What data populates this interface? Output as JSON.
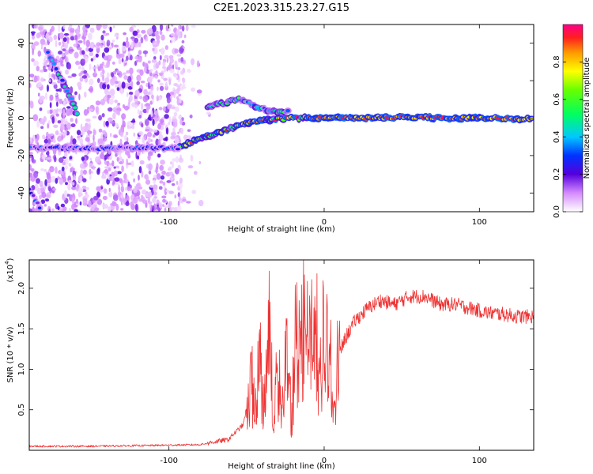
{
  "figure_title": "C2E1.2023.315.23.27.G15",
  "chart_data": [
    {
      "type": "heatmap",
      "title": "C2E1.2023.315.23.27.G15",
      "xlabel": "Height of straight line (km)",
      "ylabel": "Frequency (Hz)",
      "xlim": [
        -190,
        135
      ],
      "ylim": [
        -50,
        50
      ],
      "xticks": [
        -100,
        0,
        100
      ],
      "xtick_labels": [
        "-100",
        "0",
        "100"
      ],
      "yticks": [
        -40,
        -20,
        0,
        20,
        40
      ],
      "ytick_labels": [
        "-40",
        "-20",
        "0",
        "20",
        "40"
      ],
      "colorbar": {
        "label": "Normalized spectral amplitude",
        "range": [
          0,
          1
        ],
        "ticks": [
          0.0,
          0.2,
          0.4,
          0.6,
          0.8
        ],
        "tick_labels": [
          "0.0",
          "0.2",
          "0.4",
          "0.6",
          "0.8"
        ],
        "colormap": "rainbow"
      },
      "features": [
        {
          "name": "direct signal trace",
          "points": [
            [
              -93,
              -15
            ],
            [
              -80,
              -11
            ],
            [
              -65,
              -7
            ],
            [
              -55,
              -4
            ],
            [
              -45,
              -2
            ],
            [
              -35,
              -1
            ],
            [
              -20,
              0
            ],
            [
              0,
              0
            ],
            [
              50,
              0.5
            ],
            [
              100,
              0
            ],
            [
              135,
              -0.5
            ]
          ],
          "amplitude": 0.85
        },
        {
          "name": "upper branch",
          "points": [
            [
              -75,
              6
            ],
            [
              -65,
              8
            ],
            [
              -55,
              10
            ],
            [
              -48,
              8
            ],
            [
              -40,
              5
            ],
            [
              -30,
              3
            ],
            [
              -22,
              4
            ]
          ],
          "amplitude": 0.55
        },
        {
          "name": "low-frequency horizontal band",
          "points": [
            [
              -190,
              -16
            ],
            [
              -160,
              -16
            ],
            [
              -130,
              -16
            ],
            [
              -93,
              -16
            ]
          ],
          "amplitude": 0.3
        },
        {
          "name": "diagonal trace",
          "points": [
            [
              -178,
              35
            ],
            [
              -170,
              22
            ],
            [
              -163,
              10
            ],
            [
              -158,
              0
            ]
          ],
          "amplitude": 0.45
        },
        {
          "name": "corner trace",
          "points": [
            [
              -190,
              -38
            ],
            [
              -182,
              -50
            ]
          ],
          "amplitude": 0.3
        }
      ]
    },
    {
      "type": "line",
      "xlabel": "Height of straight line (km)",
      "ylabel": "SNR (10 * v/v)",
      "y_scale_label": "(x10",
      "y_scale_exponent": "4",
      "xlim": [
        -190,
        135
      ],
      "ylim": [
        0,
        2.35
      ],
      "xticks": [
        -100,
        0,
        100
      ],
      "xtick_labels": [
        "-100",
        "0",
        "100"
      ],
      "yticks": [
        0.5,
        1.0,
        1.5,
        2.0
      ],
      "ytick_labels": [
        "0.5",
        "1.0",
        "1.5",
        "2.0"
      ],
      "line_color": "#ee3333",
      "series": [
        {
          "name": "SNR",
          "x": [
            -190,
            -150,
            -110,
            -80,
            -72,
            -62,
            -52,
            -47,
            -44,
            -41,
            -38,
            -35,
            -33,
            -30,
            -27,
            -24,
            -21,
            -18,
            -15,
            -13,
            -10,
            -7,
            -4,
            -1,
            2,
            6,
            10,
            14,
            20,
            28,
            36,
            45,
            55,
            65,
            75,
            85,
            95,
            105,
            115,
            125,
            135
          ],
          "y": [
            0.05,
            0.05,
            0.06,
            0.07,
            0.1,
            0.13,
            0.32,
            0.85,
            0.7,
            1.2,
            0.55,
            2.0,
            0.35,
            1.0,
            0.55,
            1.55,
            0.35,
            1.75,
            1.3,
            2.35,
            1.5,
            1.6,
            1.4,
            1.55,
            1.25,
            0.9,
            1.2,
            1.4,
            1.6,
            1.75,
            1.85,
            1.8,
            1.9,
            1.9,
            1.8,
            1.8,
            1.75,
            1.7,
            1.68,
            1.65,
            1.65
          ]
        }
      ]
    }
  ]
}
